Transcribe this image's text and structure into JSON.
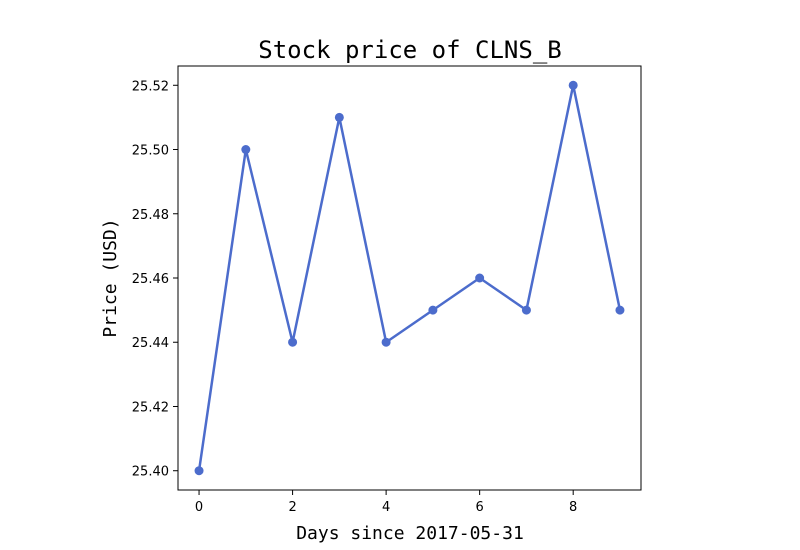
{
  "chart_data": {
    "type": "line",
    "title": "Stock price of CLNS_B",
    "xlabel": "Days since 2017-05-31",
    "ylabel": "Price (USD)",
    "x": [
      0,
      1,
      2,
      3,
      4,
      5,
      6,
      7,
      8,
      9
    ],
    "series": [
      {
        "values": [
          25.4,
          25.5,
          25.44,
          25.51,
          25.44,
          25.45,
          25.46,
          25.45,
          25.52,
          25.45
        ],
        "color": "#4c6ccc",
        "marker": "circle"
      }
    ],
    "xlim": [
      -0.45,
      9.45
    ],
    "ylim": [
      25.394,
      25.526
    ],
    "xticks": [
      0,
      2,
      4,
      6,
      8
    ],
    "xtick_labels": [
      "0",
      "2",
      "4",
      "6",
      "8"
    ],
    "yticks": [
      25.4,
      25.42,
      25.44,
      25.46,
      25.48,
      25.5,
      25.52
    ],
    "ytick_labels": [
      "25.40",
      "25.42",
      "25.44",
      "25.46",
      "25.48",
      "25.50",
      "25.52"
    ],
    "grid": false,
    "legend": false
  }
}
